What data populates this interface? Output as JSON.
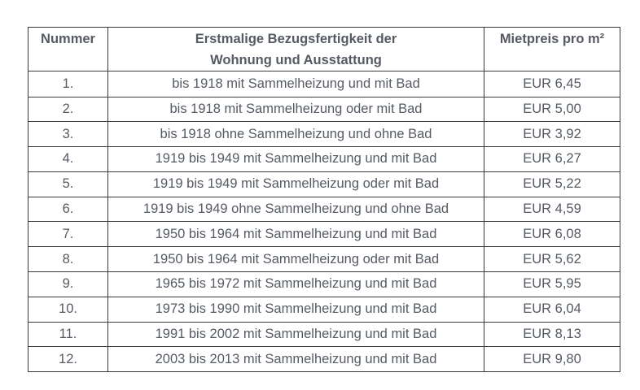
{
  "table": {
    "headers": {
      "number": "Nummer",
      "description_line1": "Erstmalige Bezugsfertigkeit der",
      "description_line2": "Wohnung und Ausstattung",
      "price": "Mietpreis pro m²"
    },
    "rows": [
      {
        "number": "1.",
        "description": "bis 1918 mit Sammelheizung und mit Bad",
        "price": "EUR 6,45"
      },
      {
        "number": "2.",
        "description": "bis 1918 mit Sammelheizung oder mit Bad",
        "price": "EUR 5,00"
      },
      {
        "number": "3.",
        "description": "bis 1918 ohne Sammelheizung und ohne Bad",
        "price": "EUR 3,92"
      },
      {
        "number": "4.",
        "description": "1919 bis 1949 mit Sammelheizung und mit Bad",
        "price": "EUR 6,27"
      },
      {
        "number": "5.",
        "description": "1919 bis 1949 mit Sammelheizung oder mit Bad",
        "price": "EUR 5,22"
      },
      {
        "number": "6.",
        "description": "1919 bis 1949 ohne Sammelheizung und ohne Bad",
        "price": "EUR 4,59"
      },
      {
        "number": "7.",
        "description": "1950 bis 1964 mit Sammelheizung und mit Bad",
        "price": "EUR 6,08"
      },
      {
        "number": "8.",
        "description": "1950 bis 1964 mit Sammelheizung oder mit Bad",
        "price": "EUR 5,62"
      },
      {
        "number": "9.",
        "description": "1965 bis 1972 mit Sammelheizung und mit Bad",
        "price": "EUR 5,95"
      },
      {
        "number": "10.",
        "description": "1973 bis 1990 mit Sammelheizung und mit Bad",
        "price": "EUR 6,04"
      },
      {
        "number": "11.",
        "description": "1991 bis 2002 mit Sammelheizung und mit Bad",
        "price": "EUR 8,13"
      },
      {
        "number": "12.",
        "description": "2003 bis 2013 mit Sammelheizung und mit Bad",
        "price": "EUR 9,80"
      }
    ]
  }
}
